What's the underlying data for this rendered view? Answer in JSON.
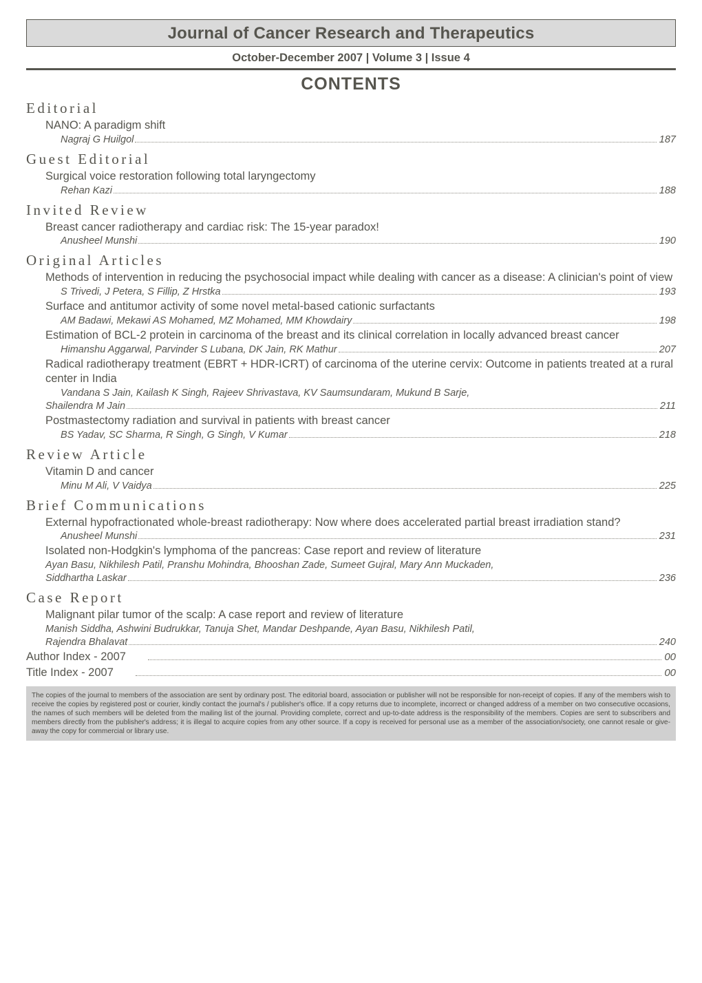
{
  "journal_title": "Journal of Cancer Research and Therapeutics",
  "issue_line": "October-December 2007 | Volume 3 | Issue 4",
  "contents_heading": "CONTENTS",
  "sections": [
    {
      "heading": "Editorial",
      "entries": [
        {
          "title": "NANO: A paradigm shift",
          "author_lines": [
            {
              "authors": "Nagraj G Huilgol",
              "page": "187"
            }
          ]
        }
      ]
    },
    {
      "heading": "Guest Editorial",
      "entries": [
        {
          "title": "Surgical voice restoration following total laryngectomy",
          "author_lines": [
            {
              "authors": "Rehan Kazi",
              "page": "188"
            }
          ]
        }
      ]
    },
    {
      "heading": "Invited Review",
      "entries": [
        {
          "title": "Breast cancer radiotherapy and cardiac risk: The 15-year paradox!",
          "author_lines": [
            {
              "authors": "Anusheel Munshi",
              "page": "190"
            }
          ]
        }
      ]
    },
    {
      "heading": "Original Articles",
      "entries": [
        {
          "title": "Methods of intervention in reducing the psychosocial impact while dealing with cancer as a disease: A clinician's point of view",
          "author_lines": [
            {
              "authors": "S Trivedi, J Petera, S Fillip, Z Hrstka ",
              "page": "193"
            }
          ]
        },
        {
          "title": "Surface and antitumor activity of some novel metal-based cationic surfactants",
          "author_lines": [
            {
              "authors": "AM Badawi, Mekawi AS Mohamed, MZ Mohamed, MM Khowdairy",
              "page": "198"
            }
          ]
        },
        {
          "title": "Estimation of BCL-2 protein in carcinoma of the breast and its clinical correlation in locally advanced breast cancer",
          "author_lines": [
            {
              "authors": "Himanshu Aggarwal, Parvinder S Lubana, DK Jain, RK Mathur",
              "page": "207"
            }
          ]
        },
        {
          "title": "Radical radiotherapy treatment (EBRT + HDR-ICRT) of carcinoma of the uterine cervix: Outcome in patients treated at a rural center in India",
          "author_lines": [
            {
              "authors": "Vandana S Jain, Kailash K Singh, Rajeev Shrivastava, KV Saumsundaram, Mukund B Sarje,",
              "page": null
            },
            {
              "authors": "Shailendra M Jain",
              "page": "211",
              "no_indent": true
            }
          ]
        },
        {
          "title": "Postmastectomy radiation and survival in patients with breast cancer",
          "author_lines": [
            {
              "authors": "BS Yadav, SC Sharma, R Singh, G Singh, V Kumar",
              "page": "218"
            }
          ]
        }
      ]
    },
    {
      "heading": "Review Article",
      "entries": [
        {
          "title": "Vitamin D and cancer",
          "author_lines": [
            {
              "authors": "Minu M Ali, V Vaidya",
              "page": "225"
            }
          ]
        }
      ]
    },
    {
      "heading": "Brief Communications",
      "entries": [
        {
          "title": "External hypofractionated whole-breast radiotherapy: Now where does accelerated partial breast irradiation stand?",
          "author_lines": [
            {
              "authors": "Anusheel Munshi",
              "page": "231"
            }
          ]
        },
        {
          "title": "Isolated non-Hodgkin's lymphoma of the pancreas: Case report and review of literature",
          "author_lines": [
            {
              "authors": "Ayan Basu, Nikhilesh Patil, Pranshu Mohindra, Bhooshan Zade, Sumeet Gujral, Mary Ann Muckaden,",
              "page": null,
              "no_indent": true
            },
            {
              "authors": "Siddhartha Laskar",
              "page": "236",
              "no_indent": true
            }
          ]
        }
      ]
    },
    {
      "heading": "Case Report",
      "entries": [
        {
          "title": "Malignant pilar tumor of the scalp: A case report and review of literature",
          "author_lines": [
            {
              "authors": "Manish Siddha, Ashwini Budrukkar, Tanuja Shet, Mandar Deshpande, Ayan Basu, Nikhilesh Patil,",
              "page": null,
              "no_indent": true
            },
            {
              "authors": "Rajendra Bhalavat",
              "page": "240",
              "no_indent": true
            }
          ]
        }
      ]
    }
  ],
  "indexes": [
    {
      "label": "Author Index - 2007",
      "page": "00"
    },
    {
      "label": "Title Index - 2007",
      "page": "00"
    }
  ],
  "disclaimer": "The copies of the journal to members of the association are sent by ordinary post. The editorial board, association or publisher will not be responsible for non-receipt of copies. If any of the members wish to receive the copies by registered post or courier, kindly contact the journal's / publisher's office. If a copy returns due to incomplete, incorrect or changed address of a member on two consecutive occasions, the names of such members will be deleted from the mailing list of the journal. Providing complete, correct and up-to-date address is the responsibility of the members. Copies are sent to subscribers and members directly from the publisher's address; it is illegal to acquire copies from any other source. If a copy is received for personal use as a member of the association/society, one cannot resale or give-away the copy for commercial or library use."
}
